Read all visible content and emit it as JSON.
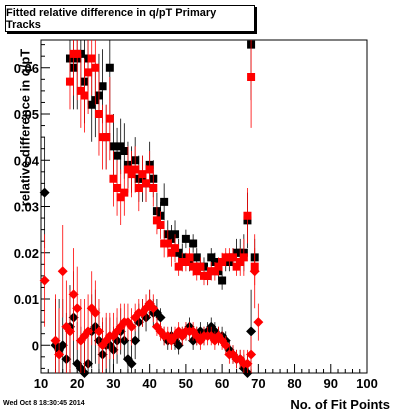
{
  "title": "Fitted relative difference in q/pT Primary Tracks",
  "timestamp": "Wed Oct  8 18:30:45 2014",
  "chart_data": {
    "type": "scatter",
    "xlabel": "No. of Fit Points",
    "ylabel": "relative difference in q/pT",
    "xlim": [
      10,
      100
    ],
    "ylim": [
      -0.006,
      0.066
    ],
    "x_ticks": [
      10,
      20,
      30,
      40,
      50,
      60,
      70,
      80,
      90,
      100
    ],
    "y_ticks": [
      0,
      0.01,
      0.02,
      0.03,
      0.04,
      0.05,
      0.06
    ],
    "y_tick_labels": [
      "0",
      "0.01",
      "0.02",
      "0.03",
      "0.04",
      "0.05",
      "0.06"
    ],
    "grid": false,
    "series": [
      {
        "marker": "square",
        "color": "#000000",
        "x": [
          18,
          19,
          20,
          21,
          22,
          23,
          24,
          25,
          26,
          27,
          28,
          29,
          30,
          31,
          32,
          33,
          34,
          35,
          36,
          37,
          38,
          39,
          40,
          41,
          42,
          43,
          44,
          45,
          46,
          47,
          48,
          49,
          50,
          51,
          52,
          53,
          54,
          55,
          56,
          57,
          58,
          59,
          60,
          61,
          62,
          63,
          64,
          65,
          66,
          67,
          68,
          69
        ],
        "y": [
          0.062,
          0.06,
          0.062,
          0.063,
          0.057,
          0.062,
          0.052,
          0.053,
          0.054,
          0.056,
          0.045,
          0.06,
          0.043,
          0.041,
          0.043,
          0.042,
          0.039,
          0.038,
          0.04,
          0.036,
          0.036,
          0.035,
          0.039,
          0.036,
          0.029,
          0.028,
          0.031,
          0.024,
          0.023,
          0.024,
          0.02,
          0.019,
          0.023,
          0.018,
          0.022,
          0.019,
          0.017,
          0.017,
          0.015,
          0.019,
          0.018,
          0.016,
          0.014,
          0.018,
          0.018,
          0.019,
          0.02,
          0.02,
          0.02,
          0.027,
          0.065,
          0.019
        ],
        "y_err": [
          0.006,
          0.009,
          0.011,
          0.008,
          0.009,
          0.01,
          0.008,
          0.008,
          0.009,
          0.008,
          0.007,
          0.01,
          0.007,
          0.006,
          0.006,
          0.006,
          0.005,
          0.005,
          0.005,
          0.005,
          0.005,
          0.004,
          0.005,
          0.004,
          0.004,
          0.003,
          0.004,
          0.003,
          0.003,
          0.003,
          0.003,
          0.003,
          0.002,
          0.002,
          0.002,
          0.002,
          0.002,
          0.002,
          0.002,
          0.002,
          0.002,
          0.002,
          0.002,
          0.002,
          0.002,
          0.002,
          0.003,
          0.003,
          0.004,
          0.006,
          0.012,
          0.004
        ]
      },
      {
        "marker": "square",
        "color": "#ff0000",
        "x": [
          18,
          19,
          20,
          21,
          22,
          23,
          24,
          25,
          26,
          27,
          28,
          29,
          30,
          31,
          32,
          33,
          34,
          35,
          36,
          37,
          38,
          39,
          40,
          41,
          42,
          43,
          44,
          45,
          46,
          47,
          48,
          49,
          50,
          51,
          52,
          53,
          54,
          55,
          56,
          57,
          58,
          59,
          60,
          61,
          62,
          63,
          64,
          65,
          66,
          67,
          68,
          69
        ],
        "y": [
          0.057,
          0.063,
          0.063,
          0.055,
          0.054,
          0.059,
          0.062,
          0.06,
          0.05,
          0.045,
          0.045,
          0.049,
          0.036,
          0.034,
          0.032,
          0.033,
          0.038,
          0.037,
          0.038,
          0.034,
          0.037,
          0.035,
          0.038,
          0.034,
          0.027,
          0.026,
          0.022,
          0.022,
          0.02,
          0.021,
          0.017,
          0.018,
          0.018,
          0.019,
          0.017,
          0.016,
          0.017,
          0.015,
          0.015,
          0.016,
          0.016,
          0.017,
          0.018,
          0.019,
          0.019,
          0.019,
          0.017,
          0.018,
          0.019,
          0.028,
          0.058,
          0.017
        ],
        "y_err": [
          0.006,
          0.009,
          0.01,
          0.008,
          0.008,
          0.009,
          0.008,
          0.008,
          0.009,
          0.007,
          0.007,
          0.009,
          0.006,
          0.006,
          0.006,
          0.005,
          0.005,
          0.005,
          0.005,
          0.005,
          0.004,
          0.004,
          0.004,
          0.004,
          0.003,
          0.003,
          0.003,
          0.003,
          0.003,
          0.003,
          0.002,
          0.002,
          0.002,
          0.002,
          0.002,
          0.002,
          0.002,
          0.002,
          0.002,
          0.002,
          0.002,
          0.002,
          0.002,
          0.002,
          0.002,
          0.002,
          0.002,
          0.003,
          0.004,
          0.006,
          0.011,
          0.004
        ]
      },
      {
        "marker": "diamond",
        "color": "#000000",
        "x": [
          11,
          14,
          15,
          16,
          17,
          18,
          19,
          20,
          21,
          22,
          23,
          24,
          25,
          26,
          27,
          28,
          29,
          30,
          31,
          32,
          33,
          34,
          35,
          36,
          37,
          38,
          39,
          40,
          41,
          42,
          43,
          44,
          45,
          46,
          47,
          48,
          49,
          50,
          51,
          52,
          53,
          54,
          55,
          56,
          57,
          58,
          59,
          60,
          61,
          62,
          63,
          64,
          65,
          66,
          67,
          68
        ],
        "y": [
          0.033,
          0.0,
          -0.001,
          0.0,
          -0.003,
          0.004,
          0.006,
          -0.004,
          -0.005,
          -0.006,
          -0.004,
          0.003,
          0.004,
          0.001,
          -0.002,
          0.0,
          0.0,
          -0.001,
          0.001,
          0.003,
          0.001,
          -0.003,
          -0.004,
          0.001,
          0.005,
          0.007,
          0.006,
          0.009,
          0.007,
          0.007,
          0.006,
          0.002,
          0.001,
          0.002,
          0.001,
          0.0,
          0.002,
          0.003,
          0.004,
          0.001,
          0.002,
          0.003,
          0.002,
          0.003,
          0.004,
          0.003,
          0.002,
          0.002,
          0.001,
          -0.001,
          -0.002,
          -0.003,
          -0.003,
          -0.005,
          -0.006,
          0.003
        ],
        "y_err": [
          0.012,
          0.01,
          0.011,
          0.01,
          0.01,
          0.009,
          0.01,
          0.009,
          0.009,
          0.009,
          0.008,
          0.008,
          0.008,
          0.007,
          0.007,
          0.006,
          0.006,
          0.005,
          0.005,
          0.005,
          0.004,
          0.004,
          0.004,
          0.004,
          0.004,
          0.003,
          0.003,
          0.003,
          0.003,
          0.003,
          0.002,
          0.002,
          0.002,
          0.002,
          0.002,
          0.002,
          0.002,
          0.002,
          0.002,
          0.002,
          0.002,
          0.002,
          0.002,
          0.002,
          0.002,
          0.002,
          0.002,
          0.002,
          0.002,
          0.002,
          0.002,
          0.002,
          0.002,
          0.003,
          0.004,
          0.009
        ]
      },
      {
        "marker": "diamond",
        "color": "#ff0000",
        "x": [
          11,
          14,
          15,
          16,
          17,
          18,
          19,
          20,
          21,
          22,
          23,
          24,
          25,
          26,
          27,
          28,
          29,
          30,
          31,
          32,
          33,
          34,
          35,
          36,
          37,
          38,
          39,
          40,
          41,
          42,
          43,
          44,
          45,
          46,
          47,
          48,
          49,
          50,
          51,
          52,
          53,
          54,
          55,
          56,
          57,
          58,
          59,
          60,
          61,
          62,
          63,
          64,
          65,
          66,
          67,
          68,
          69,
          70
        ],
        "y": [
          0.014,
          0.001,
          -0.002,
          0.016,
          0.004,
          0.003,
          0.011,
          0.008,
          0.001,
          0.002,
          0.003,
          0.008,
          0.007,
          0.003,
          0.0,
          0.001,
          0.002,
          0.002,
          0.003,
          0.004,
          0.005,
          0.005,
          0.004,
          0.006,
          0.007,
          0.007,
          0.008,
          0.009,
          0.008,
          0.004,
          0.003,
          0.002,
          0.002,
          0.001,
          0.002,
          0.003,
          0.002,
          0.003,
          0.003,
          0.003,
          0.002,
          0.001,
          0.002,
          0.002,
          0.002,
          0.001,
          0.002,
          0.001,
          0.0,
          -0.002,
          -0.002,
          -0.003,
          -0.003,
          -0.004,
          -0.004,
          -0.002,
          0.016,
          0.005
        ],
        "y_err": [
          0.01,
          0.01,
          0.01,
          0.01,
          0.01,
          0.009,
          0.01,
          0.009,
          0.009,
          0.008,
          0.008,
          0.008,
          0.007,
          0.007,
          0.006,
          0.006,
          0.005,
          0.005,
          0.005,
          0.005,
          0.004,
          0.004,
          0.004,
          0.003,
          0.003,
          0.003,
          0.003,
          0.003,
          0.003,
          0.002,
          0.002,
          0.002,
          0.002,
          0.002,
          0.002,
          0.002,
          0.002,
          0.002,
          0.002,
          0.002,
          0.002,
          0.002,
          0.002,
          0.002,
          0.002,
          0.002,
          0.002,
          0.002,
          0.002,
          0.002,
          0.002,
          0.002,
          0.002,
          0.003,
          0.003,
          0.004,
          0.008,
          0.004
        ]
      }
    ]
  }
}
